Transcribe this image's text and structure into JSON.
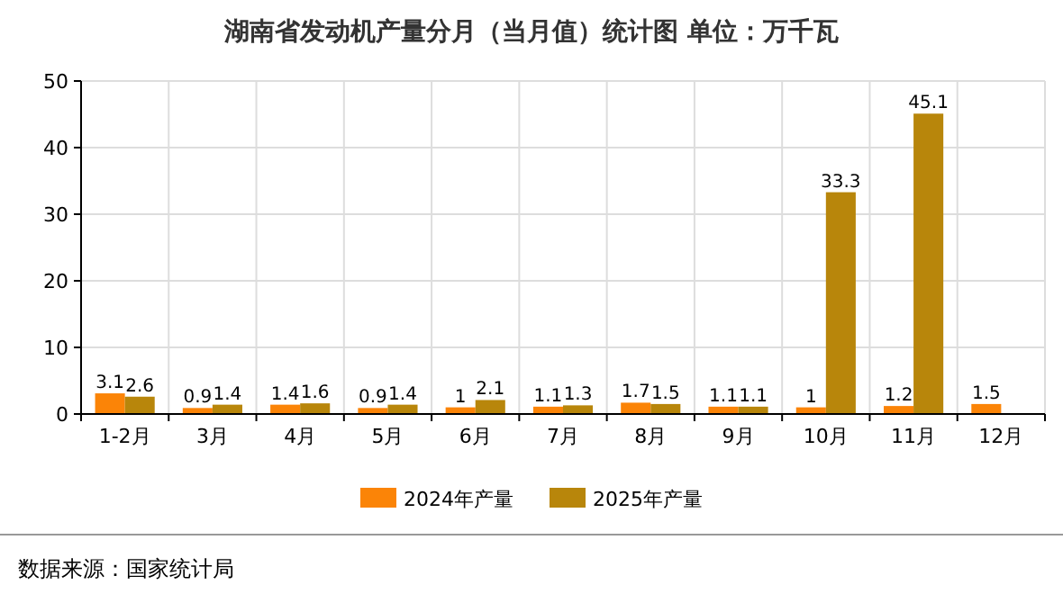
{
  "chart_data": {
    "type": "bar",
    "title": "湖南省发动机产量分月（当月值）统计图 单位：万千瓦",
    "categories": [
      "1-2月",
      "3月",
      "4月",
      "5月",
      "6月",
      "7月",
      "8月",
      "9月",
      "10月",
      "11月",
      "12月"
    ],
    "series": [
      {
        "name": "2024年产量",
        "color": "#fb8407",
        "values": [
          3.1,
          0.9,
          1.4,
          0.9,
          1,
          1.1,
          1.7,
          1.1,
          1,
          1.2,
          1.5
        ]
      },
      {
        "name": "2025年产量",
        "color": "#b8860b",
        "values": [
          2.6,
          1.4,
          1.6,
          1.4,
          2.1,
          1.3,
          1.5,
          1.1,
          33.3,
          45.1,
          null
        ]
      }
    ],
    "ylim": [
      0,
      50
    ],
    "yticks": [
      0,
      10,
      20,
      30,
      40,
      50
    ],
    "grid": true,
    "legend": "bottom",
    "data_labels": true,
    "annotations": [
      "数据来源：国家统计局"
    ]
  }
}
